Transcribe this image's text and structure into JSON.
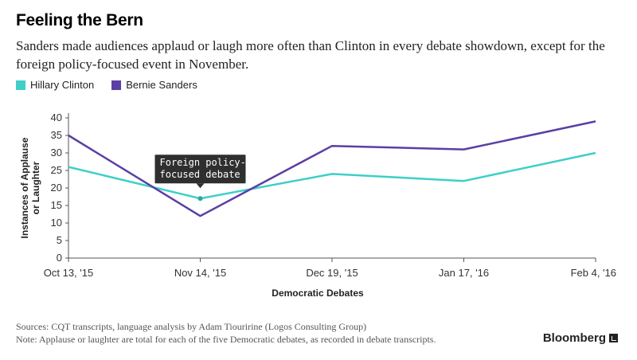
{
  "header": {
    "title": "Feeling the Bern",
    "subtitle": "Sanders made audiences applaud or laugh more often than Clinton in every debate showdown, except for the foreign policy-focused event in November."
  },
  "footer": {
    "sources": "Sources: CQT transcripts, language analysis by Adam Tiouririne (Logos Consulting Group)",
    "note": "Note: Applause or laughter are total for each of the five Democratic debates, as recorded in debate transcripts.",
    "brand": "Bloomberg"
  },
  "chart_data": {
    "type": "line",
    "categories": [
      "Oct 13, '15",
      "Nov 14, '15",
      "Dec 19, '15",
      "Jan 17, '16",
      "Feb 4, '16"
    ],
    "series": [
      {
        "name": "Hillary Clinton",
        "values": [
          26,
          17,
          24,
          22,
          30
        ],
        "color": "#3ecfc8"
      },
      {
        "name": "Bernie Sanders",
        "values": [
          35,
          12,
          32,
          31,
          39
        ],
        "color": "#5b3fa3"
      }
    ],
    "xlabel": "Democratic Debates",
    "ylabel": "Instances of Applause or Laughter",
    "ylim": [
      0,
      40
    ],
    "yticks": [
      0,
      5,
      10,
      15,
      20,
      25,
      30,
      35,
      40
    ],
    "grid": false,
    "legend": "top-left",
    "annotation": {
      "lines": [
        "Foreign policy-",
        "focused debate"
      ],
      "category": "Nov 14, '15",
      "series": "Hillary Clinton"
    }
  }
}
